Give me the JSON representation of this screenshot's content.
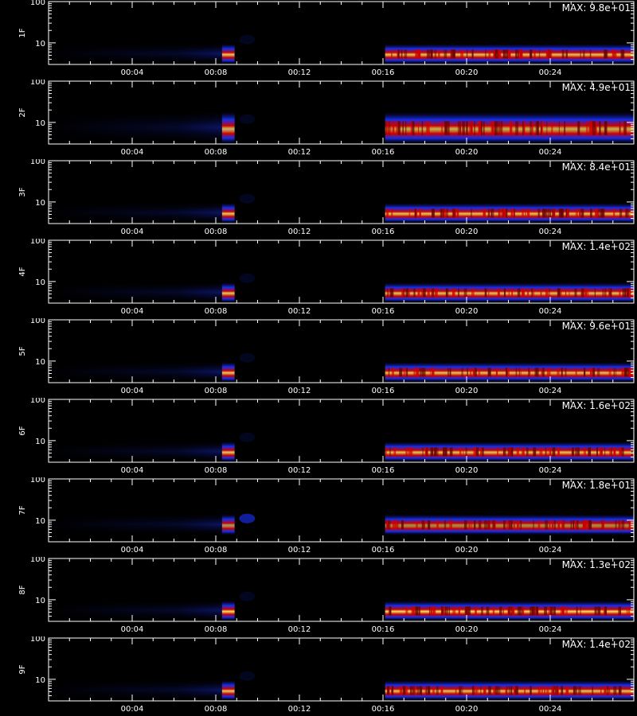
{
  "chart_data": {
    "type": "heatmap",
    "x_range": [
      0,
      28
    ],
    "y_range": [
      3,
      100
    ],
    "yscale": "log",
    "x_tick_labels": [
      "00:04",
      "00:08",
      "00:12",
      "00:16",
      "00:20",
      "00:24"
    ],
    "y_tick_labels": [
      "100",
      "10"
    ],
    "colors": {
      "background": "#000000",
      "axis": "#ffffff",
      "low": "#0a0a66",
      "mid": "#1a33ff",
      "high": "#cc0000",
      "peak": "#ffee66"
    },
    "panels": [
      {
        "name": "1F",
        "max_label": "MAX: 9.8e+01",
        "intensity": 0.85
      },
      {
        "name": "2F",
        "max_label": "MAX: 4.9e+01",
        "intensity": 0.75,
        "broad": true
      },
      {
        "name": "3F",
        "max_label": "MAX: 8.4e+01",
        "intensity": 0.85
      },
      {
        "name": "4F",
        "max_label": "MAX: 1.4e+02",
        "intensity": 0.85
      },
      {
        "name": "5F",
        "max_label": "MAX: 9.6e+01",
        "intensity": 0.85
      },
      {
        "name": "6F",
        "max_label": "MAX: 1.6e+02",
        "intensity": 0.85
      },
      {
        "name": "7F",
        "max_label": "MAX: 1.8e+01",
        "intensity": 0.6,
        "raised": true
      },
      {
        "name": "8F",
        "max_label": "MAX: 1.3e+02",
        "intensity": 0.95
      },
      {
        "name": "9F",
        "max_label": "MAX: 1.4e+02",
        "intensity": 0.85
      }
    ]
  }
}
